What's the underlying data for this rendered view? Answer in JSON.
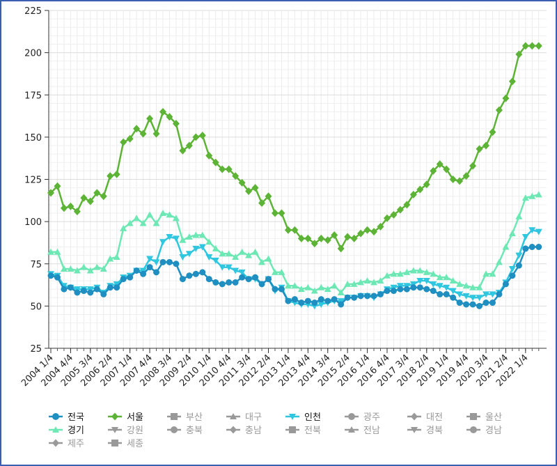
{
  "chart_data": {
    "type": "line",
    "title": "",
    "xlabel": "",
    "ylabel": "",
    "ylim": [
      25,
      225
    ],
    "yticks": [
      25,
      50,
      75,
      100,
      125,
      150,
      175,
      200,
      225
    ],
    "grid": true,
    "legend_position": "bottom",
    "x_tick_labels": [
      "2004 1/4",
      "2004 4/4",
      "2005 3/4",
      "2006 2/4",
      "2007 1/4",
      "2007 4/4",
      "2008 3/4",
      "2009 2/4",
      "2010 1/4",
      "2010 4/4",
      "2011 3/4",
      "2012 2/4",
      "2013 1/4",
      "2013 4/4",
      "2014 3/4",
      "2015 2/4",
      "2016 1/4",
      "2016 4/4",
      "2017 3/4",
      "2018 2/4",
      "2019 1/4",
      "2019 4/4",
      "2020 3/4",
      "2021 2/4",
      "2022 1/4"
    ],
    "x_start_quarter": "2004 1/4",
    "series": [
      {
        "name": "전국",
        "color": "#1e8fc0",
        "marker": "circle",
        "active": true,
        "values": [
          68,
          67,
          60,
          61,
          58,
          59,
          58,
          60,
          57,
          61,
          61,
          66,
          67,
          71,
          69,
          73,
          70,
          76,
          76,
          75,
          66,
          68,
          69,
          70,
          66,
          64,
          63,
          64,
          64,
          67,
          66,
          67,
          63,
          66,
          60,
          60,
          53,
          54,
          52,
          53,
          52,
          54,
          53,
          54,
          51,
          55,
          55,
          56,
          56,
          56,
          57,
          59,
          59,
          60,
          60,
          61,
          61,
          60,
          59,
          57,
          57,
          55,
          52,
          51,
          51,
          50,
          52,
          52,
          57,
          63,
          68,
          74,
          84,
          85,
          85
        ]
      },
      {
        "name": "서울",
        "color": "#5cb335",
        "marker": "diamond",
        "active": true,
        "values": [
          117,
          121,
          108,
          109,
          106,
          114,
          112,
          117,
          115,
          127,
          128,
          147,
          149,
          155,
          152,
          161,
          152,
          165,
          162,
          158,
          142,
          145,
          150,
          151,
          139,
          135,
          131,
          131,
          127,
          123,
          118,
          120,
          111,
          115,
          105,
          105,
          95,
          95,
          90,
          90,
          87,
          90,
          89,
          92,
          84,
          91,
          90,
          93,
          95,
          94,
          97,
          102,
          104,
          107,
          110,
          116,
          119,
          122,
          130,
          134,
          131,
          125,
          124,
          127,
          133,
          143,
          145,
          153,
          166,
          173,
          183,
          199,
          204,
          204,
          204
        ]
      },
      {
        "name": "경기",
        "color": "#6de8b5",
        "marker": "triangle-up",
        "active": true,
        "values": [
          82,
          82,
          72,
          72,
          71,
          73,
          71,
          73,
          72,
          78,
          79,
          96,
          99,
          102,
          99,
          104,
          99,
          105,
          104,
          102,
          89,
          91,
          92,
          92,
          88,
          84,
          81,
          81,
          79,
          82,
          80,
          82,
          76,
          78,
          70,
          70,
          62,
          62,
          60,
          61,
          59,
          61,
          60,
          62,
          58,
          63,
          63,
          64,
          65,
          64,
          65,
          68,
          69,
          69,
          70,
          71,
          71,
          70,
          69,
          67,
          67,
          65,
          63,
          62,
          61,
          61,
          69,
          69,
          76,
          85,
          93,
          103,
          114,
          115,
          116
        ]
      },
      {
        "name": "인천",
        "color": "#2fc6e0",
        "marker": "triangle-down",
        "active": true,
        "values": [
          69,
          68,
          62,
          61,
          60,
          60,
          60,
          61,
          58,
          62,
          63,
          67,
          68,
          71,
          71,
          78,
          76,
          88,
          91,
          90,
          79,
          81,
          84,
          85,
          79,
          77,
          73,
          73,
          71,
          70,
          66,
          66,
          63,
          66,
          59,
          61,
          53,
          52,
          51,
          51,
          50,
          51,
          52,
          53,
          53,
          55,
          55,
          56,
          56,
          55,
          57,
          60,
          61,
          62,
          62,
          63,
          65,
          65,
          63,
          62,
          61,
          59,
          57,
          56,
          55,
          55,
          57,
          57,
          58,
          64,
          72,
          80,
          91,
          95,
          94
        ]
      },
      {
        "name": "강원",
        "color": "#999999",
        "marker": "triangle-down",
        "active": false
      },
      {
        "name": "부산",
        "color": "#999999",
        "marker": "square",
        "active": false
      },
      {
        "name": "충북",
        "color": "#999999",
        "marker": "circle",
        "active": false
      },
      {
        "name": "대구",
        "color": "#999999",
        "marker": "triangle-up",
        "active": false
      },
      {
        "name": "충남",
        "color": "#999999",
        "marker": "diamond",
        "active": false
      },
      {
        "name": "전북",
        "color": "#999999",
        "marker": "square",
        "active": false
      },
      {
        "name": "광주",
        "color": "#999999",
        "marker": "circle",
        "active": false
      },
      {
        "name": "전남",
        "color": "#999999",
        "marker": "triangle-up",
        "active": false
      },
      {
        "name": "대전",
        "color": "#999999",
        "marker": "diamond",
        "active": false
      },
      {
        "name": "경북",
        "color": "#999999",
        "marker": "triangle-down",
        "active": false
      },
      {
        "name": "울산",
        "color": "#999999",
        "marker": "square",
        "active": false
      },
      {
        "name": "경남",
        "color": "#999999",
        "marker": "circle",
        "active": false
      },
      {
        "name": "제주",
        "color": "#999999",
        "marker": "diamond",
        "active": false
      },
      {
        "name": "세종",
        "color": "#999999",
        "marker": "square",
        "active": false
      }
    ],
    "legend_rows": [
      [
        "전국",
        "서울",
        "부산",
        "대구",
        "인천",
        "광주",
        "대전",
        "울산"
      ],
      [
        "경기",
        "강원",
        "충북",
        "충남",
        "전북",
        "전남",
        "경북",
        "경남"
      ],
      [
        "제주",
        "세종"
      ]
    ]
  }
}
